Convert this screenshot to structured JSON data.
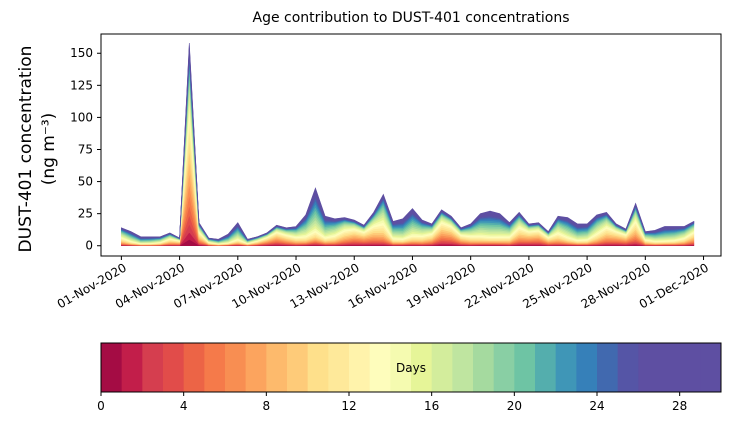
{
  "chart_data": {
    "type": "area",
    "stacked": true,
    "title": "Age contribution to DUST-401 concentrations",
    "ylabel_line1": "DUST-401 concentration",
    "ylabel_line2": "(ng m⁻³)",
    "xlabel": "",
    "ylim": [
      -8,
      165
    ],
    "yticks": [
      0,
      25,
      50,
      75,
      100,
      125,
      150
    ],
    "xticks": [
      "01-Nov-2020",
      "04-Nov-2020",
      "07-Nov-2020",
      "10-Nov-2020",
      "13-Nov-2020",
      "16-Nov-2020",
      "19-Nov-2020",
      "22-Nov-2020",
      "25-Nov-2020",
      "28-Nov-2020",
      "01-Dec-2020"
    ],
    "x_start": "2020-11-01",
    "x_end": "2020-11-30",
    "x_interval_days": 0.5,
    "total": [
      14,
      11,
      7,
      7,
      7,
      10,
      6,
      158,
      18,
      6,
      5,
      9,
      18,
      5,
      7,
      10,
      16,
      14,
      15,
      24,
      45,
      23,
      21,
      22,
      20,
      16,
      26,
      40,
      19,
      21,
      29,
      20,
      17,
      28,
      23,
      14,
      17,
      25,
      27,
      25,
      18,
      26,
      17,
      18,
      11,
      23,
      22,
      17,
      17,
      24,
      26,
      17,
      13,
      33,
      11,
      12,
      15,
      15,
      15,
      19
    ],
    "ages_days": {
      "min": 0,
      "max": 30,
      "bins": 30
    },
    "colorbar": {
      "label": "Days",
      "ticks": [
        0,
        4,
        8,
        12,
        16,
        20,
        24,
        28
      ],
      "colors": [
        "#a40c44",
        "#c21e4a",
        "#d53e4f",
        "#e14c4a",
        "#ec6446",
        "#f57a4a",
        "#f88e52",
        "#fca45e",
        "#fdba6c",
        "#fecb79",
        "#fee08b",
        "#fee99a",
        "#fff3ab",
        "#fefdbc",
        "#f5fbb0",
        "#e6f598",
        "#d3ed9c",
        "#bfe5a0",
        "#a5da9f",
        "#89cfa4",
        "#6ec4a4",
        "#54aead",
        "#3f96b7",
        "#3680b9",
        "#4169af",
        "#5555a6",
        "#5e4fa2",
        "#5e4fa2",
        "#5e4fa2",
        "#5e4fa2"
      ]
    },
    "grid": false
  }
}
